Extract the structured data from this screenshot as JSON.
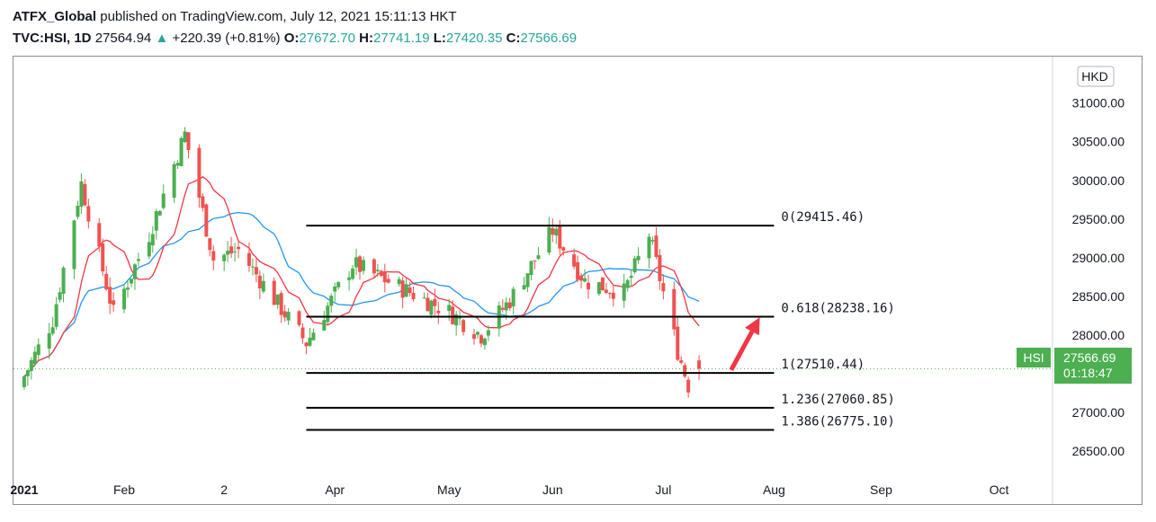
{
  "header": {
    "author": "ATFX_Global",
    "published": " published on TradingView.com, July 12, 2021 15:11:13 HKT",
    "symbol": "TVC:HSI, 1D",
    "last": "27564.94",
    "change": "+220.39 (+0.81%)",
    "o_label": "O:",
    "o_value": "27672.70",
    "h_label": "H:",
    "h_value": "27741.19",
    "l_label": "L:",
    "l_value": "27420.35",
    "c_label": "C:",
    "c_value": "27566.69"
  },
  "price_axis": {
    "currency": "HKD",
    "badge_symbol": "HSI",
    "badge_price": "27566.69",
    "badge_countdown": "01:18:47"
  },
  "colors": {
    "up": "#4caf50",
    "down": "#ef5350",
    "ma_fast": "#f23645",
    "ma_slow": "#2196f3",
    "arrow": "#f23645"
  },
  "chart_data": {
    "type": "candlestick",
    "ylim": [
      26200,
      31600
    ],
    "yticks": [
      26500,
      27000,
      27500,
      28000,
      28500,
      29000,
      29500,
      30000,
      30500,
      31000
    ],
    "ytick_labels": [
      "26500.00",
      "27000.00",
      "27500.00",
      "28000.00",
      "28500.00",
      "29000.00",
      "29500.00",
      "30000.00",
      "30500.00",
      "31000.00"
    ],
    "xticks": [
      {
        "date": "2021-01-04",
        "label": "2021"
      },
      {
        "date": "2021-02-01",
        "label": "Feb"
      },
      {
        "date": "2021-03-01",
        "label": "2"
      },
      {
        "date": "2021-04-01",
        "label": "Apr"
      },
      {
        "date": "2021-05-03",
        "label": "May"
      },
      {
        "date": "2021-06-01",
        "label": "Jun"
      },
      {
        "date": "2021-07-02",
        "label": "Jul"
      },
      {
        "date": "2021-08-02",
        "label": "Aug"
      },
      {
        "date": "2021-09-01",
        "label": "Sep"
      },
      {
        "date": "2021-10-04",
        "label": "Oct"
      }
    ],
    "xlim": [
      "2021-01-01",
      "2021-10-19"
    ],
    "key_closes": [
      {
        "date": "2021-01-04",
        "close": 27470
      },
      {
        "date": "2021-01-12",
        "close": 28200
      },
      {
        "date": "2021-01-20",
        "close": 29960
      },
      {
        "date": "2021-01-29",
        "close": 28280
      },
      {
        "date": "2021-02-08",
        "close": 29300
      },
      {
        "date": "2021-02-18",
        "close": 30600
      },
      {
        "date": "2021-02-26",
        "close": 28980
      },
      {
        "date": "2021-03-05",
        "close": 29100
      },
      {
        "date": "2021-03-24",
        "close": 27900
      },
      {
        "date": "2021-04-06",
        "close": 28920
      },
      {
        "date": "2021-04-20",
        "close": 28600
      },
      {
        "date": "2021-05-03",
        "close": 28300
      },
      {
        "date": "2021-05-12",
        "close": 28000
      },
      {
        "date": "2021-05-20",
        "close": 28450
      },
      {
        "date": "2021-06-01",
        "close": 29350
      },
      {
        "date": "2021-06-10",
        "close": 28700
      },
      {
        "date": "2021-06-21",
        "close": 28550
      },
      {
        "date": "2021-06-28",
        "close": 29300
      },
      {
        "date": "2021-07-06",
        "close": 27800
      },
      {
        "date": "2021-07-09",
        "close": 27350
      },
      {
        "date": "2021-07-12",
        "close": 27567
      }
    ],
    "fib_levels": [
      {
        "label": "0(29415.46)",
        "value": 29415.46
      },
      {
        "label": "0.618(28238.16)",
        "value": 28238.16
      },
      {
        "label": "1(27510.44)",
        "value": 27510.44
      },
      {
        "label": "1.236(27060.85)",
        "value": 27060.85
      },
      {
        "label": "1.386(26775.10)",
        "value": 26775.1
      }
    ],
    "fib_start_date": "2021-03-24",
    "fib_end_date": "2021-08-02",
    "last_price": 27566.69,
    "arrow": {
      "from": {
        "date": "2021-07-21",
        "value": 27550
      },
      "to": {
        "date": "2021-07-29",
        "value": 28230
      }
    }
  }
}
